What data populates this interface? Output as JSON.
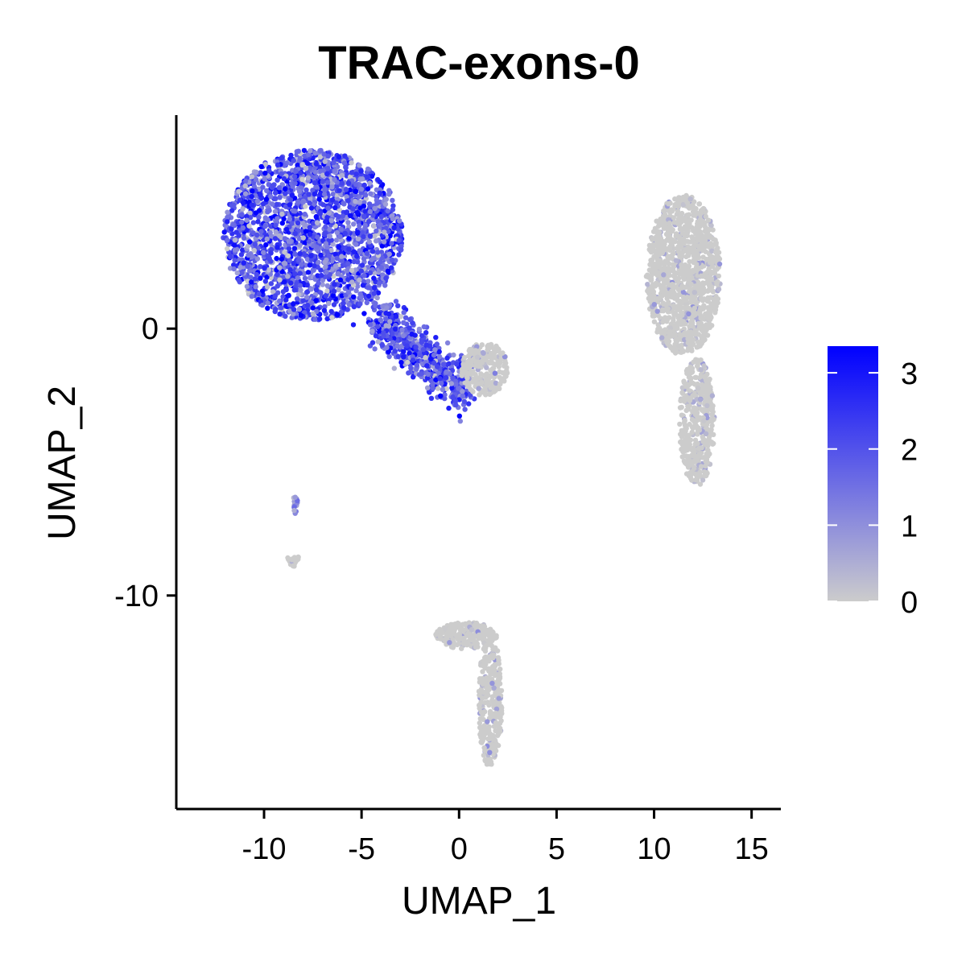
{
  "chart_data": {
    "type": "scatter",
    "title": "TRAC-exons-0",
    "xlabel": "UMAP_1",
    "ylabel": "UMAP_2",
    "xlim": [
      -14.5,
      16.5
    ],
    "ylim": [
      -18,
      8
    ],
    "xticks": [
      -10,
      -5,
      0,
      5,
      10,
      15
    ],
    "yticks": [
      0,
      -10
    ],
    "xtick_labels": [
      "-10",
      "-5",
      "0",
      "5",
      "10",
      "15"
    ],
    "ytick_labels": [
      "0",
      "-10"
    ],
    "grid": false,
    "legend": {
      "placement": "right",
      "type": "colorbar",
      "min": 0,
      "max": 3.35,
      "ticks": [
        0,
        1,
        2,
        3
      ],
      "tick_labels": [
        "0",
        "1",
        "2",
        "3"
      ],
      "low_color": "#cccccc",
      "high_color": "#0000ff"
    },
    "clusters": [
      {
        "cx": -7.5,
        "cy": 3.5,
        "rx": 4.6,
        "ry": 3.2,
        "n": 2300,
        "level": 1.9,
        "spread": 0.9,
        "shape": "blob"
      },
      {
        "cx": -2.0,
        "cy": -1.0,
        "rx": 2.3,
        "ry": 1.4,
        "n": 650,
        "level": 1.9,
        "spread": 0.8,
        "shape": "arm"
      },
      {
        "cx": 1.3,
        "cy": -1.5,
        "rx": 1.2,
        "ry": 1.0,
        "n": 260,
        "level": 0.35,
        "spread": 0.6,
        "shape": "blob"
      },
      {
        "cx": 11.5,
        "cy": 2.0,
        "rx": 1.9,
        "ry": 3.0,
        "n": 1200,
        "level": 0.15,
        "spread": 0.4,
        "shape": "blob"
      },
      {
        "cx": 12.2,
        "cy": -3.5,
        "rx": 0.9,
        "ry": 2.4,
        "n": 420,
        "level": 0.15,
        "spread": 0.4,
        "shape": "blob"
      },
      {
        "cx": 0.4,
        "cy": -11.5,
        "rx": 1.6,
        "ry": 0.5,
        "n": 220,
        "level": 0.2,
        "spread": 0.4,
        "shape": "blob"
      },
      {
        "cx": 1.6,
        "cy": -14.0,
        "rx": 0.6,
        "ry": 2.5,
        "n": 300,
        "level": 0.25,
        "spread": 0.5,
        "shape": "blob"
      },
      {
        "cx": -8.4,
        "cy": -6.6,
        "rx": 0.15,
        "ry": 0.35,
        "n": 14,
        "level": 0.8,
        "spread": 0.5,
        "shape": "blob"
      },
      {
        "cx": -8.5,
        "cy": -8.7,
        "rx": 0.35,
        "ry": 0.25,
        "n": 22,
        "level": 0.2,
        "spread": 0.3,
        "shape": "blob"
      }
    ]
  }
}
